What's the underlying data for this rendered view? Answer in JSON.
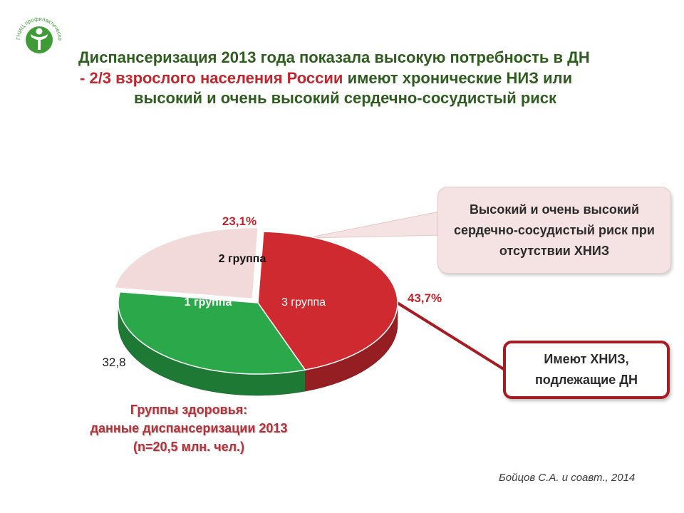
{
  "logo": {
    "text": "ГНИЦ профилактической медицины",
    "color": "#3e9b35"
  },
  "title": {
    "line1": "Диспансеризация 2013 года показала высокую потребность в ДН",
    "line2_dash": "-",
    "line2_red": "2/3 взрослого населения России",
    "line2_rest": "имеют хронические  НИЗ или",
    "line3": "высокий и очень высокий сердечно-сосудистый риск"
  },
  "chart_data": {
    "type": "pie",
    "style": "3d-exploded",
    "slices": [
      {
        "label": "1 группа",
        "value": 32.8,
        "value_label": "32,8",
        "color": "#2aa84a"
      },
      {
        "label": "2 группа",
        "value": 23.1,
        "value_label": "23,1%",
        "color": "#f2dada"
      },
      {
        "label": "3 группа",
        "value": 43.7,
        "value_label": "43,7%",
        "color": "#cf2a30"
      }
    ]
  },
  "callouts": {
    "risk": "Высокий и очень высокий сердечно-сосудистый  риск при отсутствии ХНИЗ",
    "hniz": "Имеют ХНИЗ, подлежащие ДН"
  },
  "caption": {
    "line1": "Группы  здоровья:",
    "line2": "данные диспансеризации 2013",
    "line3": "(n=20,5 млн. чел.)"
  },
  "source": "Бойцов С.А. и соавт., 2014",
  "colors": {
    "title_green": "#2e5d1f",
    "accent_red": "#c0262d",
    "callout_border": "#a61c22"
  }
}
